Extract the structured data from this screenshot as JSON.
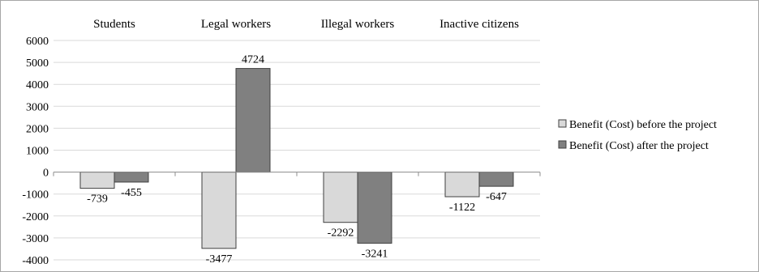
{
  "chart_data": {
    "type": "bar",
    "categories": [
      "Students",
      "Legal workers",
      "Illegal workers",
      "Inactive citizens"
    ],
    "category_label_position": "top",
    "series": [
      {
        "name": "Benefit (Cost) before the project",
        "values": [
          -739,
          -3477,
          -2292,
          -1122
        ],
        "color": "#d9d9d9"
      },
      {
        "name": "Benefit (Cost) after the project",
        "values": [
          -455,
          4724,
          -3241,
          -647
        ],
        "color": "#808080"
      }
    ],
    "data_labels": [
      [
        "-739",
        "-3477",
        "-2292",
        "-1122"
      ],
      [
        "-455",
        "4724",
        "-3241",
        "-647"
      ]
    ],
    "ylim": [
      -4000,
      6000
    ],
    "yticks": [
      6000,
      5000,
      4000,
      3000,
      2000,
      1000,
      0,
      -1000,
      -2000,
      -3000,
      -4000
    ],
    "ytick_labels": [
      "6000",
      "5000",
      "4000",
      "3000",
      "2000",
      "1000",
      "0",
      "-1000",
      "-2000",
      "-3000",
      "-4000"
    ],
    "grid": true,
    "legend_position": "right",
    "title": "",
    "xlabel": "",
    "ylabel": ""
  }
}
